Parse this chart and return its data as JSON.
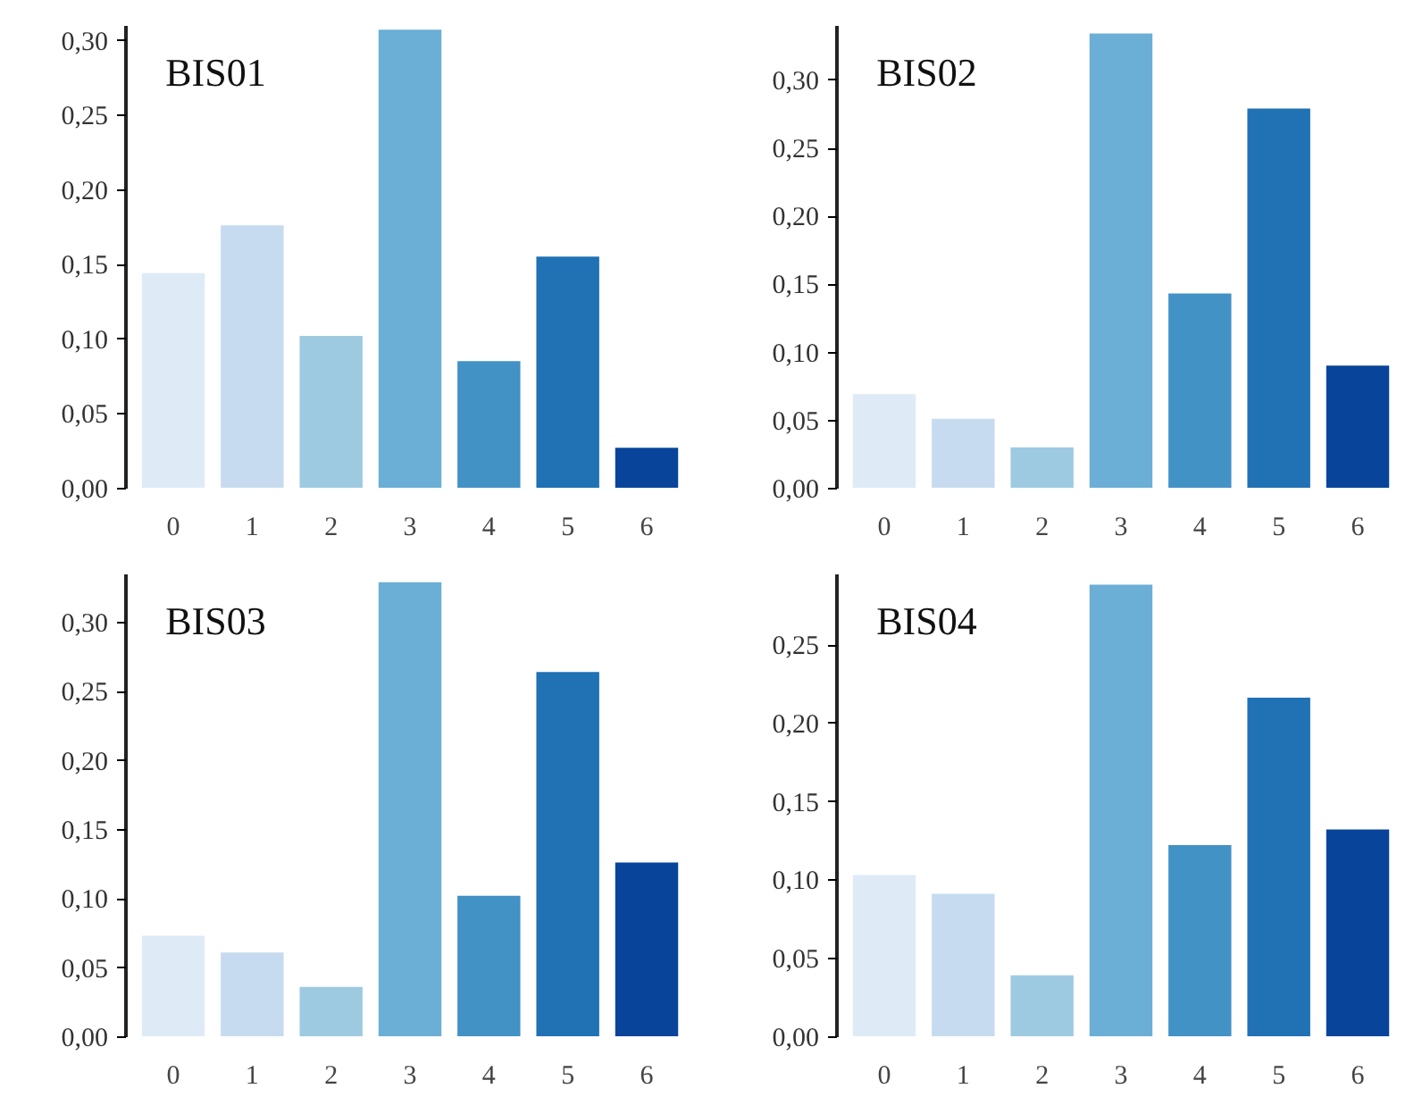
{
  "chart_data": [
    {
      "type": "bar",
      "title": "BIS01",
      "categories": [
        "0",
        "1",
        "2",
        "3",
        "4",
        "5",
        "6"
      ],
      "values": [
        0.145,
        0.177,
        0.103,
        0.308,
        0.086,
        0.156,
        0.028
      ],
      "colors": [
        "#deebf7",
        "#c6dbef",
        "#9ecae1",
        "#6baed6",
        "#4292c6",
        "#2171b5",
        "#08459a"
      ],
      "ylim": [
        0,
        0.31
      ],
      "yticks": [
        {
          "value": 0,
          "label": "0,00"
        },
        {
          "value": 0.05,
          "label": "0,05"
        },
        {
          "value": 0.1,
          "label": "0,10"
        },
        {
          "value": 0.15,
          "label": "0,15"
        },
        {
          "value": 0.2,
          "label": "0,20"
        },
        {
          "value": 0.25,
          "label": "0,25"
        },
        {
          "value": 0.3,
          "label": "0,30"
        }
      ]
    },
    {
      "type": "bar",
      "title": "BIS02",
      "categories": [
        "0",
        "1",
        "2",
        "3",
        "4",
        "5",
        "6"
      ],
      "values": [
        0.07,
        0.052,
        0.031,
        0.335,
        0.144,
        0.28,
        0.091
      ],
      "colors": [
        "#deebf7",
        "#c6dbef",
        "#9ecae1",
        "#6baed6",
        "#4292c6",
        "#2171b5",
        "#08459a"
      ],
      "ylim": [
        0,
        0.34
      ],
      "yticks": [
        {
          "value": 0,
          "label": "0,00"
        },
        {
          "value": 0.05,
          "label": "0,05"
        },
        {
          "value": 0.1,
          "label": "0,10"
        },
        {
          "value": 0.15,
          "label": "0,15"
        },
        {
          "value": 0.2,
          "label": "0,20"
        },
        {
          "value": 0.25,
          "label": "0,25"
        },
        {
          "value": 0.3,
          "label": "0,30"
        }
      ]
    },
    {
      "type": "bar",
      "title": "BIS03",
      "categories": [
        "0",
        "1",
        "2",
        "3",
        "4",
        "5",
        "6"
      ],
      "values": [
        0.074,
        0.062,
        0.037,
        0.33,
        0.103,
        0.265,
        0.127
      ],
      "colors": [
        "#deebf7",
        "#c6dbef",
        "#9ecae1",
        "#6baed6",
        "#4292c6",
        "#2171b5",
        "#08459a"
      ],
      "ylim": [
        0,
        0.335
      ],
      "yticks": [
        {
          "value": 0,
          "label": "0,00"
        },
        {
          "value": 0.05,
          "label": "0,05"
        },
        {
          "value": 0.1,
          "label": "0,10"
        },
        {
          "value": 0.15,
          "label": "0,15"
        },
        {
          "value": 0.2,
          "label": "0,20"
        },
        {
          "value": 0.25,
          "label": "0,25"
        },
        {
          "value": 0.3,
          "label": "0,30"
        }
      ]
    },
    {
      "type": "bar",
      "title": "BIS04",
      "categories": [
        "0",
        "1",
        "2",
        "3",
        "4",
        "5",
        "6"
      ],
      "values": [
        0.104,
        0.092,
        0.04,
        0.289,
        0.123,
        0.217,
        0.133
      ],
      "colors": [
        "#deebf7",
        "#c6dbef",
        "#9ecae1",
        "#6baed6",
        "#4292c6",
        "#2171b5",
        "#08459a"
      ],
      "ylim": [
        0,
        0.295
      ],
      "yticks": [
        {
          "value": 0,
          "label": "0,00"
        },
        {
          "value": 0.05,
          "label": "0,05"
        },
        {
          "value": 0.1,
          "label": "0,10"
        },
        {
          "value": 0.15,
          "label": "0,15"
        },
        {
          "value": 0.2,
          "label": "0,20"
        },
        {
          "value": 0.25,
          "label": "0,25"
        }
      ]
    }
  ]
}
